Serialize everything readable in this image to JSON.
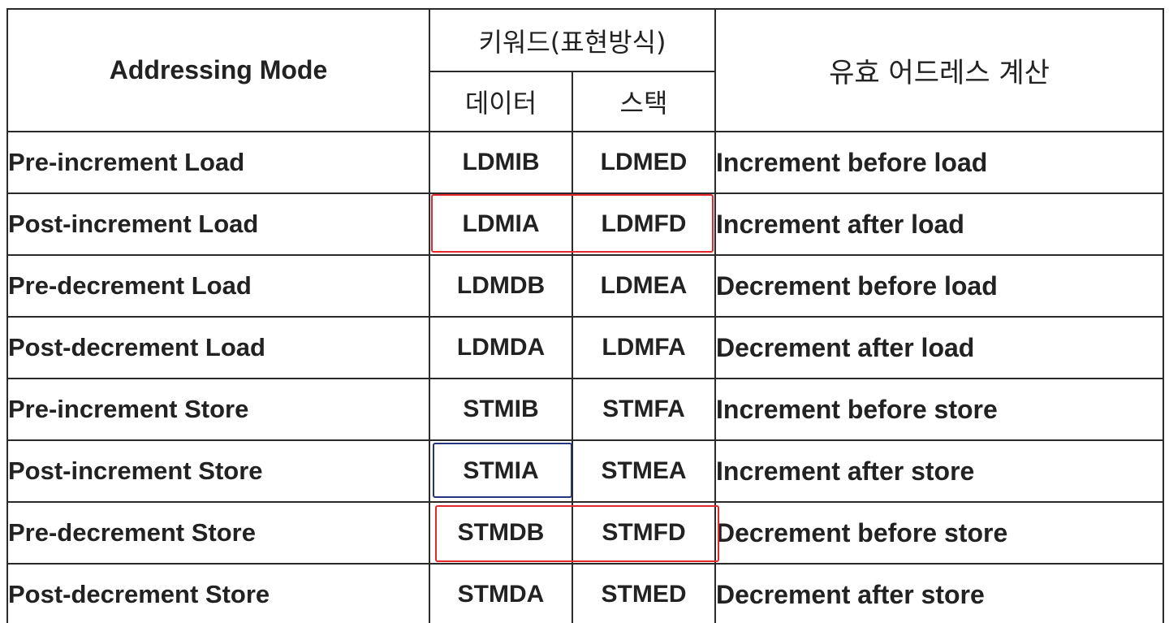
{
  "table": {
    "header": {
      "mode": "Addressing Mode",
      "keyword": "키워드(표현방식)",
      "data": "데이터",
      "stack": "스택",
      "effective": "유효 어드레스 계산"
    },
    "rows": [
      {
        "mode": "Pre-increment Load",
        "data": "LDMIB",
        "stack": "LDMED",
        "calc": "Increment before load"
      },
      {
        "mode": "Post-increment Load",
        "data": "LDMIA",
        "stack": "LDMFD",
        "calc": "Increment after load"
      },
      {
        "mode": "Pre-decrement Load",
        "data": "LDMDB",
        "stack": "LDMEA",
        "calc": "Decrement before load"
      },
      {
        "mode": "Post-decrement Load",
        "data": "LDMDA",
        "stack": "LDMFA",
        "calc": "Decrement after load"
      },
      {
        "mode": "Pre-increment Store",
        "data": "STMIB",
        "stack": "STMFA",
        "calc": "Increment before store"
      },
      {
        "mode": "Post-increment Store",
        "data": "STMIA",
        "stack": "STMEA",
        "calc": "Increment after store"
      },
      {
        "mode": "Pre-decrement Store",
        "data": "STMDB",
        "stack": "STMFD",
        "calc": "Decrement before store"
      },
      {
        "mode": "Post-decrement Store",
        "data": "STMDA",
        "stack": "STMED",
        "calc": "Decrement after store"
      }
    ]
  },
  "annotations": {
    "red_mark_color": "#e0282d",
    "blue_mark_color": "#26347a"
  }
}
